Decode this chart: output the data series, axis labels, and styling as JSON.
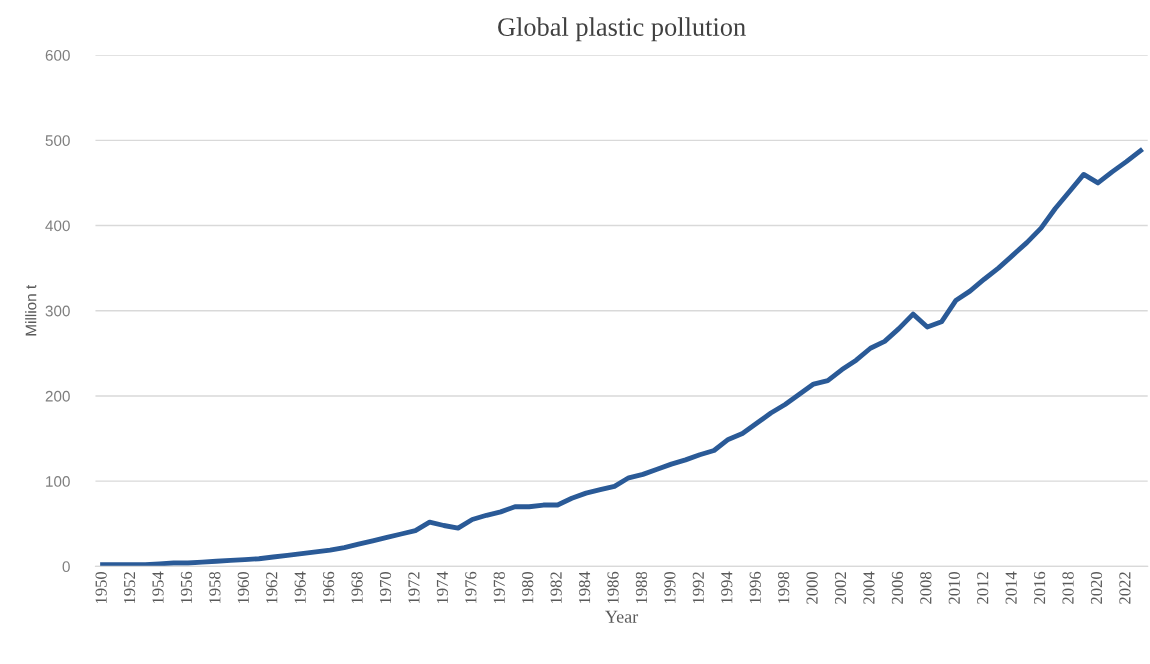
{
  "chart_data": {
    "type": "line",
    "title": "Global plastic pollution",
    "xlabel": "Year",
    "ylabel": "Million t",
    "categories": [
      "1950",
      null,
      "1952",
      null,
      "1954",
      null,
      "1956",
      null,
      "1958",
      null,
      "1960",
      null,
      "1962",
      null,
      "1964",
      null,
      "1966",
      null,
      "1968",
      null,
      "1970",
      null,
      "1972",
      null,
      "1974",
      null,
      "1976",
      null,
      "1978",
      null,
      "1980",
      null,
      "1982",
      null,
      "1984",
      null,
      "1986",
      null,
      "1988",
      null,
      "1990",
      null,
      "1992",
      null,
      "1994",
      null,
      "1996",
      null,
      "1998",
      null,
      "2000",
      null,
      "2002",
      null,
      "2004",
      null,
      "2006",
      null,
      "2008",
      null,
      "2010",
      null,
      "2012",
      null,
      "2014",
      null,
      "2016",
      null,
      "2018",
      null,
      "2020",
      null,
      "2022",
      null
    ],
    "series": [
      {
        "color": "#2a5a97",
        "values": [
          2,
          2,
          2,
          2,
          3,
          4,
          4,
          5,
          6,
          7,
          8,
          9,
          11,
          13,
          15,
          17,
          19,
          22,
          26,
          30,
          34,
          38,
          42,
          52,
          48,
          45,
          55,
          60,
          64,
          70,
          70,
          72,
          72,
          80,
          86,
          90,
          94,
          104,
          108,
          114,
          120,
          125,
          131,
          136,
          149,
          156,
          168,
          180,
          190,
          202,
          214,
          218,
          231,
          242,
          256,
          264,
          279,
          296,
          281,
          287,
          312,
          323,
          337,
          350,
          365,
          380,
          397,
          420,
          440,
          460,
          450,
          463,
          475,
          488
        ]
      }
    ],
    "ylim": [
      0,
      600
    ],
    "yticks": [
      0,
      100,
      200,
      300,
      400,
      500,
      600
    ],
    "grid": "y",
    "legend": false,
    "marker": "none",
    "line_style": "solid"
  }
}
